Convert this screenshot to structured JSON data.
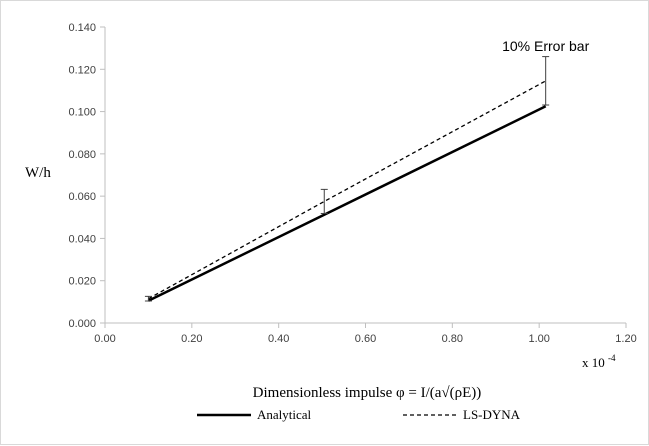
{
  "chart_data": {
    "type": "line",
    "xlabel": "Dimensionless impulse φ = I/(a√(ρE))",
    "xscale_label": "x 10",
    "xscale_exponent": "-4",
    "ylabel": "W/h",
    "xlim": [
      0.0,
      1.2
    ],
    "ylim": [
      0.0,
      0.14
    ],
    "x_ticks": [
      "0.00",
      "0.20",
      "0.40",
      "0.60",
      "0.80",
      "1.00",
      "1.20"
    ],
    "y_ticks": [
      "0.000",
      "0.020",
      "0.040",
      "0.060",
      "0.080",
      "0.100",
      "0.120",
      "0.140"
    ],
    "grid": false,
    "legend_position": "bottom",
    "series": [
      {
        "name": "Analytical",
        "style": "solid",
        "color": "#000000",
        "x": [
          0.1,
          1.015
        ],
        "y": [
          0.0105,
          0.1025
        ]
      },
      {
        "name": "LS-DYNA",
        "style": "dashed",
        "color": "#000000",
        "x": [
          0.1,
          0.505,
          1.015
        ],
        "y": [
          0.0115,
          0.0575,
          0.1145
        ],
        "error_bars": [
          {
            "x": 0.1,
            "low": 0.0104,
            "high": 0.0126
          },
          {
            "x": 0.505,
            "low": 0.0518,
            "high": 0.0632
          },
          {
            "x": 1.015,
            "low": 0.1031,
            "high": 0.126
          }
        ]
      }
    ],
    "annotations": [
      {
        "text": "10% Error bar",
        "x": 1.015,
        "y": 0.131
      }
    ]
  }
}
